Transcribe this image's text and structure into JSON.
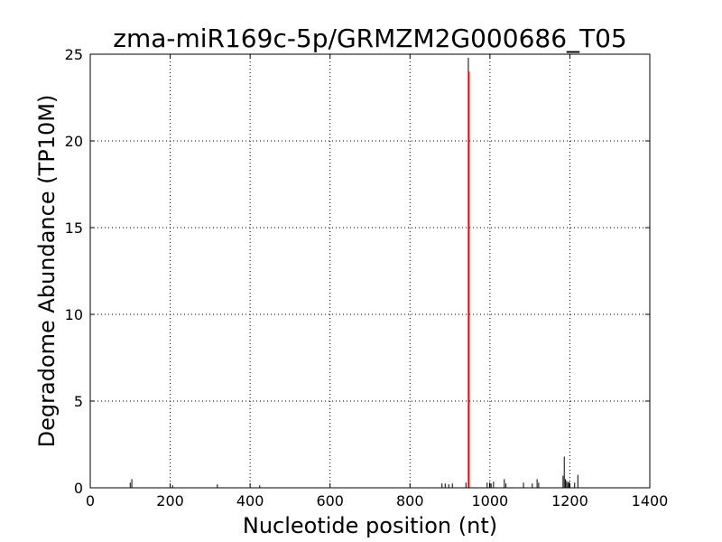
{
  "chart_data": {
    "type": "bar",
    "title": "zma-miR169c-5p/GRMZM2G000686_T05",
    "xlabel": "Nucleotide position (nt)",
    "ylabel": "Degradome Abundance (TP10M)",
    "xlim": [
      0,
      1400
    ],
    "ylim": [
      0,
      25
    ],
    "xticks": [
      0,
      200,
      400,
      600,
      800,
      1000,
      1200,
      1400
    ],
    "yticks": [
      0,
      5,
      10,
      15,
      20,
      25
    ],
    "grid": true,
    "colors": {
      "background_bars": "#000000",
      "target_bar": "#ff0000",
      "grid": "#000000"
    },
    "series": [
      {
        "role": "background",
        "points": [
          {
            "x": 100,
            "y": 0.3
          },
          {
            "x": 104,
            "y": 0.5
          },
          {
            "x": 206,
            "y": 0.15
          },
          {
            "x": 318,
            "y": 0.2
          },
          {
            "x": 424,
            "y": 0.15
          },
          {
            "x": 880,
            "y": 0.25
          },
          {
            "x": 888,
            "y": 0.25
          },
          {
            "x": 897,
            "y": 0.2
          },
          {
            "x": 906,
            "y": 0.25
          },
          {
            "x": 940,
            "y": 0.3
          },
          {
            "x": 946,
            "y": 24.8
          },
          {
            "x": 993,
            "y": 0.3
          },
          {
            "x": 999,
            "y": 0.3
          },
          {
            "x": 1003,
            "y": 0.25
          },
          {
            "x": 1009,
            "y": 0.35
          },
          {
            "x": 1036,
            "y": 0.5
          },
          {
            "x": 1040,
            "y": 0.25
          },
          {
            "x": 1084,
            "y": 0.3
          },
          {
            "x": 1106,
            "y": 0.25
          },
          {
            "x": 1118,
            "y": 0.5
          },
          {
            "x": 1122,
            "y": 0.3
          },
          {
            "x": 1183,
            "y": 0.7
          },
          {
            "x": 1186,
            "y": 1.8
          },
          {
            "x": 1189,
            "y": 0.5
          },
          {
            "x": 1192,
            "y": 0.4
          },
          {
            "x": 1195,
            "y": 0.3
          },
          {
            "x": 1198,
            "y": 0.35
          },
          {
            "x": 1212,
            "y": 0.3
          },
          {
            "x": 1220,
            "y": 0.75
          }
        ]
      },
      {
        "role": "target",
        "points": [
          {
            "x": 947,
            "y": 24.0
          }
        ]
      }
    ]
  }
}
